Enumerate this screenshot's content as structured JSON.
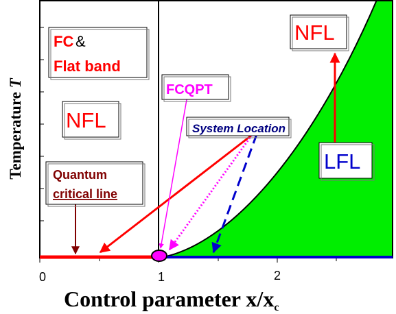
{
  "x_axis": {
    "label": "Control parameter x/x",
    "label_subscript": "c",
    "ticks": [
      "0",
      "1",
      "2"
    ]
  },
  "y_axis": {
    "label": "Temperature ",
    "label_var": "T"
  },
  "labels": {
    "fc_part1": "FC",
    "fc_amp": " &",
    "flat_band": "Flat band",
    "nfl_left": "NFL",
    "nfl_right": "NFL",
    "fcqpt": "FCQPT",
    "system_location": "System Location",
    "lfl": "LFL",
    "qcl_line1": "Quantum",
    "qcl_line2": "critical line"
  },
  "colors": {
    "red": "#ff0000",
    "dark_red": "#800000",
    "magenta": "#ff00ff",
    "blue": "#0000cc",
    "navy": "#000080",
    "green": "#00ee00"
  }
}
